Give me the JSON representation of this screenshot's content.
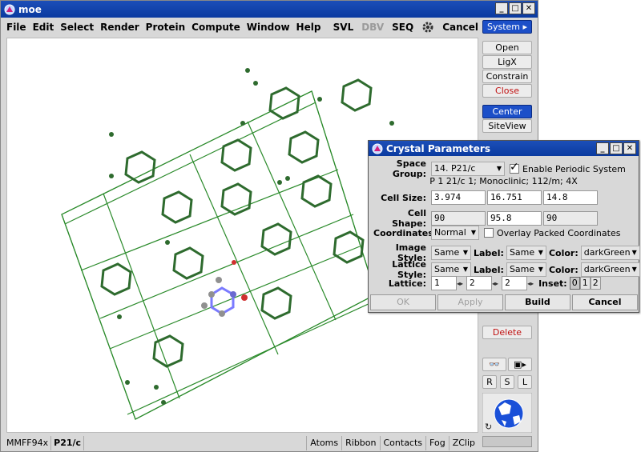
{
  "app": {
    "title": "moe"
  },
  "menubar": {
    "items": [
      "File",
      "Edit",
      "Select",
      "Render",
      "Protein",
      "Compute",
      "Window",
      "Help"
    ],
    "right": {
      "svl": "SVL",
      "dbv": "DBV",
      "seq": "SEQ",
      "cancel": "Cancel"
    }
  },
  "rightpanel": {
    "system": "System",
    "open": "Open",
    "ligx": "LigX",
    "constrain": "Constrain",
    "close": "Close",
    "center": "Center",
    "siteview": "SiteView",
    "delete": "Delete",
    "rsl": [
      "R",
      "S",
      "L"
    ]
  },
  "statusbar": {
    "forcefield": "MMFF94x",
    "spacegroup": "P21/c",
    "buttons": [
      "Atoms",
      "Ribbon",
      "Contacts",
      "Fog",
      "ZClip"
    ]
  },
  "dialog": {
    "title": "Crystal Parameters",
    "space_group_label": "Space Group:",
    "space_group_value": "14. P21/c",
    "enable_periodic": "Enable Periodic System",
    "description": "P 1 21/c 1; Monoclinic; 112/m; 4X",
    "cell_size_label": "Cell Size:",
    "cell_size": [
      "3.974",
      "16.751",
      "14.8"
    ],
    "cell_shape_label": "Cell Shape:",
    "cell_shape": [
      "90",
      "95.8",
      "90"
    ],
    "coordinates_label": "Coordinates:",
    "coordinates_value": "Normal",
    "overlay_packed": "Overlay Packed Coordinates",
    "image_style_label": "Image Style:",
    "image_style_value": "Same",
    "image_label_label": "Label:",
    "image_label_value": "Same",
    "image_color_label": "Color:",
    "image_color_value": "darkGreen",
    "lattice_style_label": "Lattice Style:",
    "lattice_style_value": "Same",
    "lattice_label_label": "Label:",
    "lattice_label_value": "Same",
    "lattice_color_label": "Color:",
    "lattice_color_value": "darkGreen",
    "lattice_label": "Lattice:",
    "lattice_values": [
      "1",
      "2",
      "2"
    ],
    "inset_label": "Inset:",
    "inset_options": [
      "0",
      "1",
      "2"
    ],
    "ok": "OK",
    "apply": "Apply",
    "build": "Build",
    "cancel": "Cancel"
  },
  "colors": {
    "accent": "#1c4fc8",
    "lattice": "#2a8a2a",
    "molecule": "#2e6b2e"
  }
}
